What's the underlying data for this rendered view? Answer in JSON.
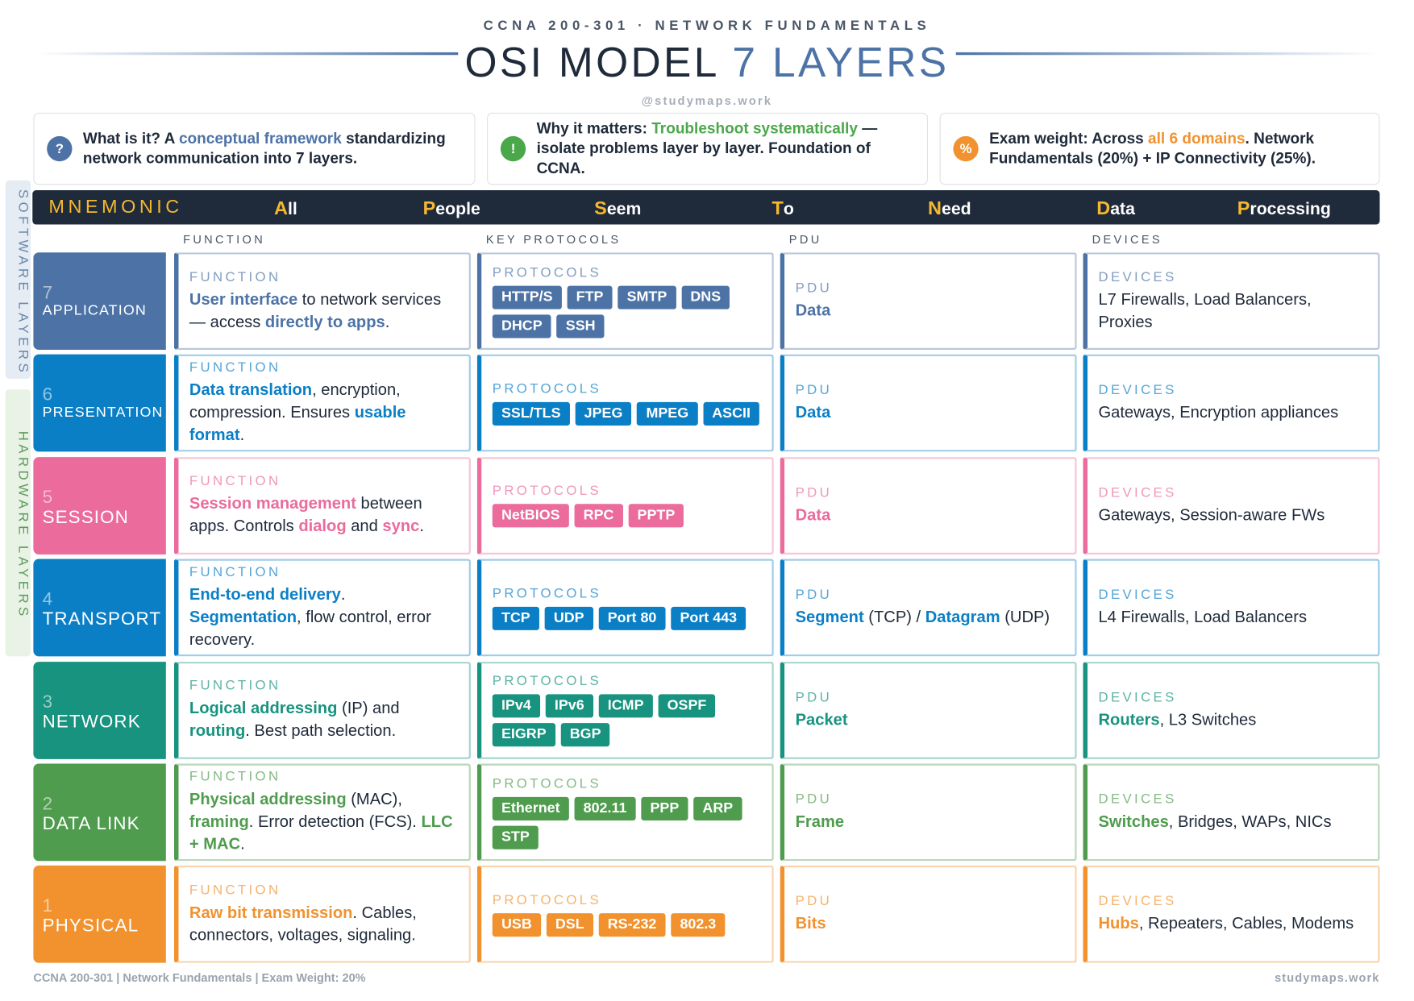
{
  "header": {
    "kicker": "CCNA 200-301 · NETWORK FUNDAMENTALS",
    "title_main": "OSI MODEL",
    "title_accent": "7 LAYERS",
    "handle": "@studymaps.work"
  },
  "info": [
    {
      "icon": "?",
      "color": "#4d73a6",
      "segments": [
        {
          "text": "What is it? "
        },
        {
          "text": "A "
        },
        {
          "text": "conceptual framework",
          "style": "accent"
        },
        {
          "text": " standardizing network communication into 7 layers."
        }
      ]
    },
    {
      "icon": "!",
      "color": "#4aa84a",
      "segments": [
        {
          "text": "Why it matters: "
        },
        {
          "text": "Troubleshoot systematically",
          "style": "accent"
        },
        {
          "text": " — isolate problems layer by layer. Foundation of CCNA."
        }
      ]
    },
    {
      "icon": "%",
      "color": "#f0922f",
      "segments": [
        {
          "text": "Exam weight: "
        },
        {
          "text": "Across "
        },
        {
          "text": "all 6 domains",
          "style": "accent"
        },
        {
          "text": ". Network Fundamentals (20%) + IP Connectivity (25%)."
        }
      ]
    }
  ],
  "mnemonic": {
    "label": "MNEMONIC",
    "words": [
      {
        "initial": "A",
        "rest": "ll"
      },
      {
        "initial": "P",
        "rest": "eople"
      },
      {
        "initial": "S",
        "rest": "eem"
      },
      {
        "initial": "T",
        "rest": "o"
      },
      {
        "initial": "N",
        "rest": "eed"
      },
      {
        "initial": "D",
        "rest": "ata"
      },
      {
        "initial": "P",
        "rest": "rocessing"
      }
    ]
  },
  "columns": [
    "FUNCTION",
    "KEY PROTOCOLS",
    "PDU",
    "DEVICES"
  ],
  "side_labels": {
    "software": "SOFTWARE LAYERS",
    "hardware": "HARDWARE LAYERS"
  },
  "layers": [
    {
      "number": "7",
      "name": "APPLICATION",
      "color": "#4d73a6",
      "function_label": "FUNCTION",
      "function": [
        {
          "text": "User interface",
          "style": "accent"
        },
        {
          "text": " to network services — access "
        },
        {
          "text": "directly to apps",
          "style": "accent"
        },
        {
          "text": "."
        }
      ],
      "protocols_label": "PROTOCOLS",
      "protocols": [
        "HTTP/S",
        "FTP",
        "SMTP",
        "DNS",
        "DHCP",
        "SSH"
      ],
      "pdu_label": "PDU",
      "pdu": [
        {
          "text": "Data",
          "style": "accent"
        }
      ],
      "devices_label": "DEVICES",
      "devices": [
        {
          "text": "L7 Firewalls, Load Balancers, Proxies"
        }
      ]
    },
    {
      "number": "6",
      "name": "PRESENTATION",
      "color": "#0b7fc6",
      "function_label": "FUNCTION",
      "function": [
        {
          "text": "Data translation",
          "style": "accent"
        },
        {
          "text": ", encryption, compression. Ensures "
        },
        {
          "text": "usable format",
          "style": "accent"
        },
        {
          "text": "."
        }
      ],
      "protocols_label": "PROTOCOLS",
      "protocols": [
        "SSL/TLS",
        "JPEG",
        "MPEG",
        "ASCII"
      ],
      "pdu_label": "PDU",
      "pdu": [
        {
          "text": "Data",
          "style": "accent"
        }
      ],
      "devices_label": "DEVICES",
      "devices": [
        {
          "text": "Gateways, Encryption appliances"
        }
      ]
    },
    {
      "number": "5",
      "name": "SESSION",
      "color": "#ea6b9c",
      "function_label": "FUNCTION",
      "function": [
        {
          "text": "Session management",
          "style": "accent"
        },
        {
          "text": " between apps. Controls "
        },
        {
          "text": "dialog",
          "style": "accent"
        },
        {
          "text": " and "
        },
        {
          "text": "sync",
          "style": "accent"
        },
        {
          "text": "."
        }
      ],
      "protocols_label": "PROTOCOLS",
      "protocols": [
        "NetBIOS",
        "RPC",
        "PPTP"
      ],
      "pdu_label": "PDU",
      "pdu": [
        {
          "text": "Data",
          "style": "accent"
        }
      ],
      "devices_label": "DEVICES",
      "devices": [
        {
          "text": "Gateways, Session-aware FWs"
        }
      ]
    },
    {
      "number": "4",
      "name": "TRANSPORT",
      "color": "#0b7fc6",
      "function_label": "FUNCTION",
      "function": [
        {
          "text": "End-to-end delivery",
          "style": "accent"
        },
        {
          "text": ". "
        },
        {
          "text": "Segmentation",
          "style": "accent"
        },
        {
          "text": ", flow control, error recovery."
        }
      ],
      "protocols_label": "PROTOCOLS",
      "protocols": [
        "TCP",
        "UDP",
        "Port 80",
        "Port 443"
      ],
      "pdu_label": "PDU",
      "pdu": [
        {
          "text": "Segment",
          "style": "accent"
        },
        {
          "text": " (TCP) / "
        },
        {
          "text": "Datagram",
          "style": "accent"
        },
        {
          "text": " (UDP)"
        }
      ],
      "devices_label": "DEVICES",
      "devices": [
        {
          "text": "L4 Firewalls, Load Balancers"
        }
      ]
    },
    {
      "number": "3",
      "name": "NETWORK",
      "color": "#17937f",
      "function_label": "FUNCTION",
      "function": [
        {
          "text": "Logical addressing",
          "style": "accent"
        },
        {
          "text": " (IP) and "
        },
        {
          "text": "routing",
          "style": "accent"
        },
        {
          "text": ". Best path selection."
        }
      ],
      "protocols_label": "PROTOCOLS",
      "protocols": [
        "IPv4",
        "IPv6",
        "ICMP",
        "OSPF",
        "EIGRP",
        "BGP"
      ],
      "pdu_label": "PDU",
      "pdu": [
        {
          "text": "Packet",
          "style": "accent"
        }
      ],
      "devices_label": "DEVICES",
      "devices": [
        {
          "text": "Routers",
          "style": "accent"
        },
        {
          "text": ", L3 Switches"
        }
      ]
    },
    {
      "number": "2",
      "name": "DATA LINK",
      "color": "#4f9c4e",
      "function_label": "FUNCTION",
      "function": [
        {
          "text": "Physical addressing",
          "style": "accent"
        },
        {
          "text": " (MAC), "
        },
        {
          "text": "framing",
          "style": "accent"
        },
        {
          "text": ". Error detection (FCS). "
        },
        {
          "text": "LLC + MAC",
          "style": "accent"
        },
        {
          "text": "."
        }
      ],
      "protocols_label": "PROTOCOLS",
      "protocols": [
        "Ethernet",
        "802.11",
        "PPP",
        "ARP",
        "STP"
      ],
      "pdu_label": "PDU",
      "pdu": [
        {
          "text": "Frame",
          "style": "accent"
        }
      ],
      "devices_label": "DEVICES",
      "devices": [
        {
          "text": "Switches",
          "style": "accent"
        },
        {
          "text": ", Bridges, WAPs, NICs"
        }
      ]
    },
    {
      "number": "1",
      "name": "PHYSICAL",
      "color": "#f1922e",
      "function_label": "FUNCTION",
      "function": [
        {
          "text": "Raw bit transmission",
          "style": "accent"
        },
        {
          "text": ". Cables, connectors, voltages, signaling."
        }
      ],
      "protocols_label": "PROTOCOLS",
      "protocols": [
        "USB",
        "DSL",
        "RS-232",
        "802.3"
      ],
      "pdu_label": "PDU",
      "pdu": [
        {
          "text": "Bits",
          "style": "accent"
        }
      ],
      "devices_label": "DEVICES",
      "devices": [
        {
          "text": "Hubs",
          "style": "accent"
        },
        {
          "text": ", Repeaters, Cables, Modems"
        }
      ]
    }
  ],
  "footer": {
    "left": "CCNA 200-301 | Network Fundamentals | Exam Weight: 20%",
    "right": "studymaps.work"
  }
}
